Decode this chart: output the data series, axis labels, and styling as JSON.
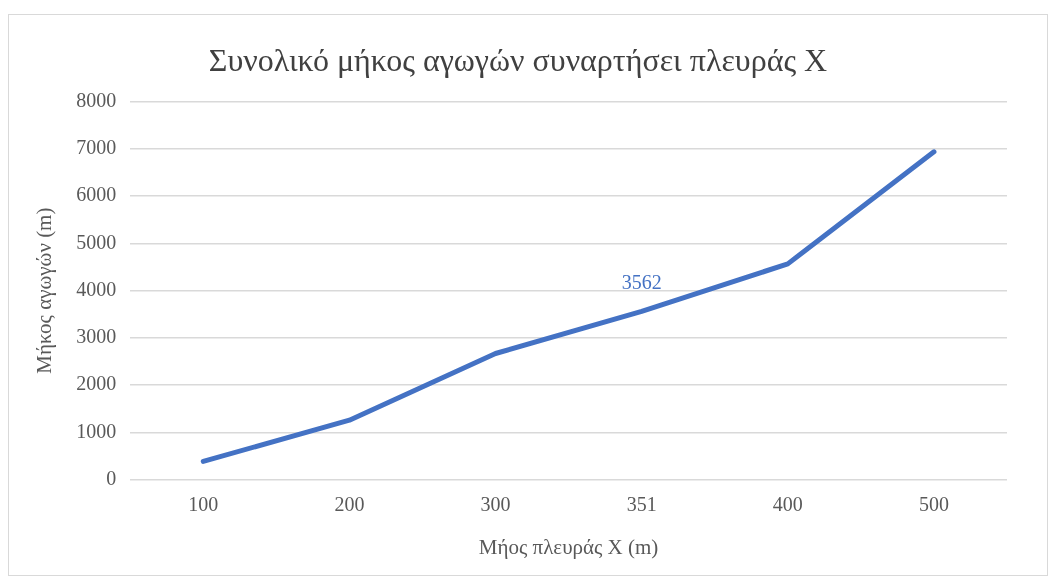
{
  "chart_data": {
    "type": "line",
    "title": "Συνολικό μήκος αγωγών συναρτήσει πλευράς X",
    "xlabel": "Μήος πλευράς X (m)",
    "ylabel": "Μήκος αγωγών (m)",
    "categories": [
      "100",
      "200",
      "300",
      "351",
      "400",
      "500"
    ],
    "series": [
      {
        "color": "#4472c4",
        "values": [
          390,
          1260,
          2670,
          3562,
          4565,
          6935
        ],
        "value_labels": [
          null,
          null,
          null,
          "3562",
          null,
          null
        ]
      }
    ],
    "ylim": [
      0,
      8000
    ],
    "yticks": [
      0,
      1000,
      2000,
      3000,
      4000,
      5000,
      6000,
      7000,
      8000
    ],
    "grid": "y",
    "legend": false,
    "marker": "none",
    "line_style": "solid"
  }
}
